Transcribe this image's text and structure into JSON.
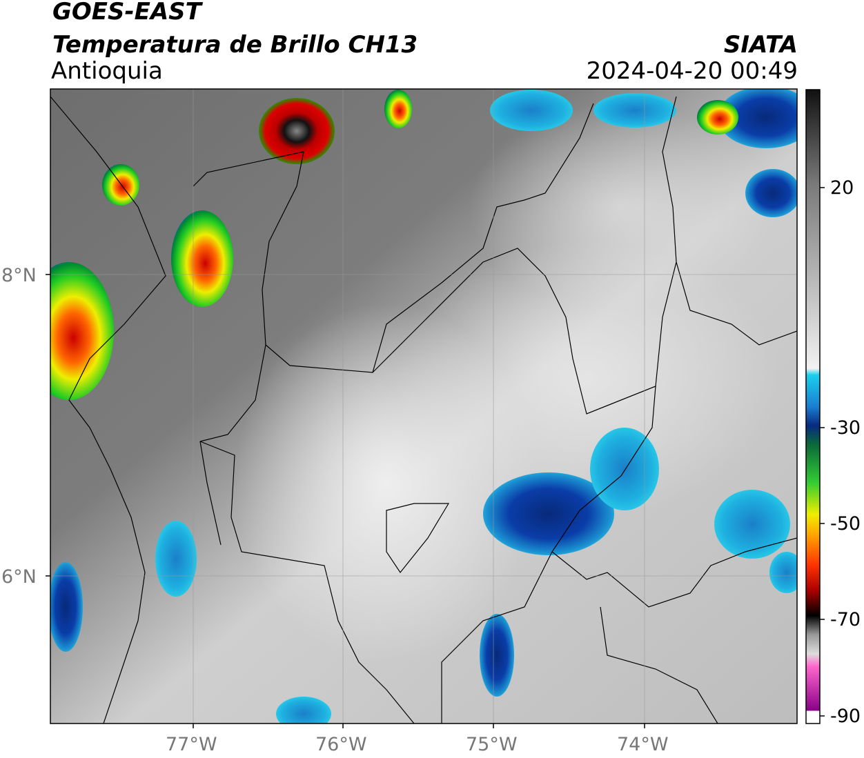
{
  "header": {
    "satellite": "GOES-EAST",
    "product": "Temperatura de Brillo CH13",
    "region": "Antioquia",
    "source": "SIATA",
    "datetime": "2024-04-20 00:49"
  },
  "map": {
    "lat_labels": [
      "8°N",
      "6°N"
    ],
    "lon_labels": [
      "77°W",
      "76°W",
      "75°W",
      "74°W"
    ]
  },
  "colorbar": {
    "ticks": [
      "20",
      "-30",
      "-50",
      "-70",
      "-90"
    ]
  }
}
